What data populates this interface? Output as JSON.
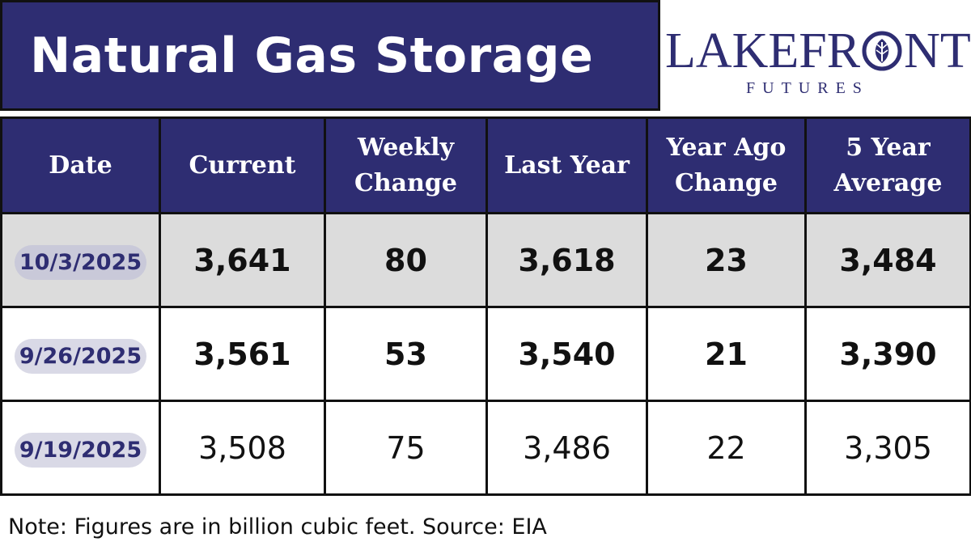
{
  "title": "Natural Gas Storage",
  "logo": {
    "main_before": "LAKEFR",
    "main_after": "NT",
    "sub": "FUTURES",
    "icon": "leaf-in-circle-icon"
  },
  "table": {
    "headers": {
      "date": "Date",
      "current": "Current",
      "weekly_change": "Weekly Change",
      "last_year": "Last Year",
      "year_ago_change": "Year Ago Change",
      "five_year_average": "5 Year Average"
    },
    "rows": [
      {
        "date": "10/3/2025",
        "current": "3,641",
        "weekly_change": "80",
        "last_year": "3,618",
        "year_ago_change": "23",
        "five_year_average": "3,484"
      },
      {
        "date": "9/26/2025",
        "current": "3,561",
        "weekly_change": "53",
        "last_year": "3,540",
        "year_ago_change": "21",
        "five_year_average": "3,390"
      },
      {
        "date": "9/19/2025",
        "current": "3,508",
        "weekly_change": "75",
        "last_year": "3,486",
        "year_ago_change": "22",
        "five_year_average": "3,305"
      }
    ]
  },
  "note": "Note: Figures are in billion cubic feet. Source: EIA",
  "colors": {
    "navy": "#2e2d72",
    "row_shade": "#dcdcdc",
    "pill": "#d9d9e6"
  }
}
